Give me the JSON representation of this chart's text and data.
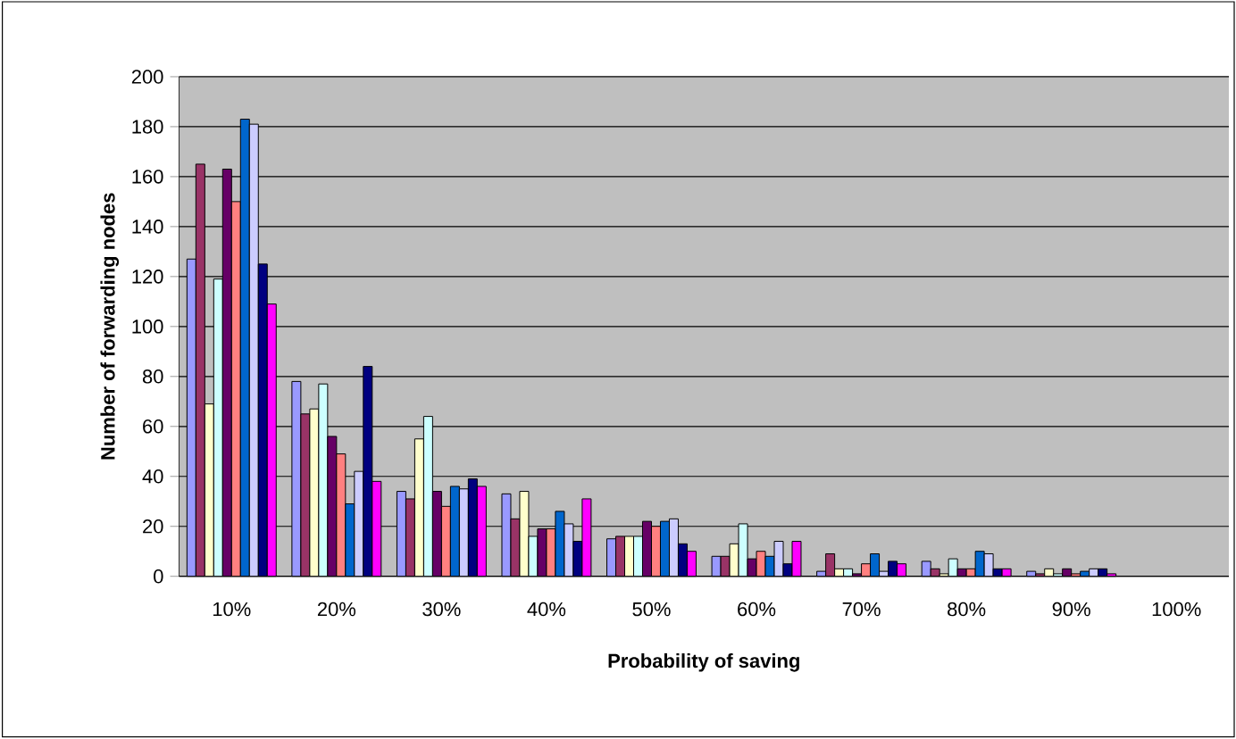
{
  "chart_data": {
    "type": "bar",
    "xlabel": "Probability of saving",
    "ylabel": "Number of forwarding nodes",
    "categories": [
      "10%",
      "20%",
      "30%",
      "40%",
      "50%",
      "60%",
      "70%",
      "80%",
      "90%",
      "100%"
    ],
    "ylim": [
      0,
      200
    ],
    "yticks": [
      0,
      20,
      40,
      60,
      80,
      100,
      120,
      140,
      160,
      180,
      200
    ],
    "grid": "y",
    "series": [
      {
        "color": "#9999ff",
        "values": [
          127,
          78,
          34,
          33,
          15,
          8,
          2,
          6,
          2,
          null
        ]
      },
      {
        "color": "#993366",
        "values": [
          165,
          65,
          31,
          23,
          16,
          8,
          9,
          3,
          1,
          null
        ]
      },
      {
        "color": "#ffffcc",
        "values": [
          69,
          67,
          55,
          34,
          16,
          13,
          3,
          1,
          3,
          null
        ]
      },
      {
        "color": "#ccffff",
        "values": [
          119,
          77,
          64,
          16,
          16,
          21,
          3,
          7,
          1,
          null
        ]
      },
      {
        "color": "#660066",
        "values": [
          163,
          56,
          34,
          19,
          22,
          7,
          1,
          3,
          3,
          null
        ]
      },
      {
        "color": "#ff8080",
        "values": [
          150,
          49,
          28,
          19,
          20,
          10,
          5,
          3,
          1,
          null
        ]
      },
      {
        "color": "#0066cc",
        "values": [
          183,
          29,
          36,
          26,
          22,
          8,
          9,
          10,
          2,
          null
        ]
      },
      {
        "color": "#ccccff",
        "values": [
          181,
          42,
          35,
          21,
          23,
          14,
          2,
          9,
          3,
          null
        ]
      },
      {
        "color": "#000080",
        "values": [
          125,
          84,
          39,
          14,
          13,
          5,
          6,
          3,
          3,
          null
        ]
      },
      {
        "color": "#ff00ff",
        "values": [
          109,
          38,
          36,
          31,
          10,
          14,
          5,
          3,
          1,
          null
        ]
      }
    ]
  }
}
